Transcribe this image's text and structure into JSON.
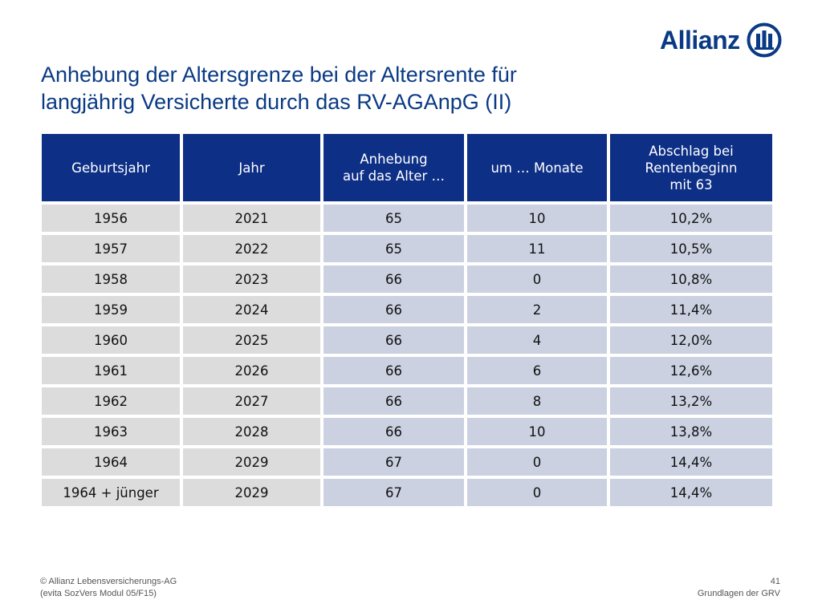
{
  "brand": {
    "name": "Allianz",
    "color": "#0a3a84"
  },
  "title": {
    "line1": "Anhebung der Altersgrenze bei der Altersrente für",
    "line2": "langjährig Versicherte durch das RV-AGAnpG (II)"
  },
  "table": {
    "headers": [
      [
        "Geburtsjahr"
      ],
      [
        "Jahr"
      ],
      [
        "Anhebung",
        "auf das Alter …"
      ],
      [
        "um … Monate"
      ],
      [
        "Abschlag bei",
        "Rentenbeginn",
        "mit 63"
      ]
    ],
    "rows": [
      [
        "1956",
        "2021",
        "65",
        "10",
        "10,2%"
      ],
      [
        "1957",
        "2022",
        "65",
        "11",
        "10,5%"
      ],
      [
        "1958",
        "2023",
        "66",
        "0",
        "10,8%"
      ],
      [
        "1959",
        "2024",
        "66",
        "2",
        "11,4%"
      ],
      [
        "1960",
        "2025",
        "66",
        "4",
        "12,0%"
      ],
      [
        "1961",
        "2026",
        "66",
        "6",
        "12,6%"
      ],
      [
        "1962",
        "2027",
        "66",
        "8",
        "13,2%"
      ],
      [
        "1963",
        "2028",
        "66",
        "10",
        "13,8%"
      ],
      [
        "1964",
        "2029",
        "67",
        "0",
        "14,4%"
      ],
      [
        "1964 + jünger",
        "2029",
        "67",
        "0",
        "14,4%"
      ]
    ],
    "colors": {
      "header_bg": "#0d2f86",
      "cell_gray": "#dcdcdc",
      "cell_blue": "#cbd1e1"
    }
  },
  "footer": {
    "left_line1": "© Allianz Lebensversicherungs-AG",
    "left_line2": "(evita SozVers Modul 05/F15)",
    "page_number": "41",
    "section": "Grundlagen der GRV"
  }
}
